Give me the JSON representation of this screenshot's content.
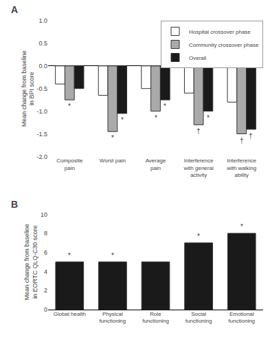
{
  "chart_data": [
    {
      "type": "bar",
      "title": "A",
      "categories": [
        "Composite\npain",
        "Worst pain",
        "Average\npain",
        "Interference\nwith general\nactivity",
        "Interference\nwith walking\nability"
      ],
      "series": [
        {
          "name": "Hospital crossover phase",
          "color": "#ffffff",
          "values": [
            -0.4,
            -0.65,
            -0.5,
            -0.6,
            -0.8
          ]
        },
        {
          "name": "Community crossover phase",
          "color": "#aaaaaa",
          "values": [
            -0.75,
            -1.45,
            -1.0,
            -1.3,
            -1.5
          ]
        },
        {
          "name": "Overall",
          "color": "#1a1a1a",
          "values": [
            -0.5,
            -1.05,
            -0.75,
            -1.0,
            -1.4
          ]
        }
      ],
      "ylabel": "Mean change from baseline\nin BPI score",
      "ylim": [
        -2.0,
        1.0
      ],
      "yticks": [
        {
          "value": -2.0,
          "label": "-2.0"
        },
        -1.5,
        {
          "value": -1.0,
          "label": "-1.0"
        },
        -0.5,
        {
          "value": 0.0,
          "label": "0.0"
        },
        0.5,
        {
          "value": 1.0,
          "label": "1.0"
        }
      ],
      "grid": false,
      "legend": "upper right",
      "annotations": [
        {
          "category": "Composite\npain",
          "series": "Community crossover phase",
          "text": "*"
        },
        {
          "category": "Worst pain",
          "series": "Community crossover phase",
          "text": "*"
        },
        {
          "category": "Average\npain",
          "series": "Community crossover phase",
          "text": "*"
        },
        {
          "category": "Interference\nwith general\nactivity",
          "series": "Community crossover phase",
          "text": "†"
        },
        {
          "category": "Interference\nwith walking\nability",
          "series": "Community crossover phase",
          "text": "†"
        },
        {
          "category": "Worst pain",
          "series": "Overall",
          "text": "*"
        },
        {
          "category": "Average\npain",
          "series": "Overall",
          "text": "*"
        },
        {
          "category": "Interference\nwith general\nactivity",
          "series": "Overall",
          "text": "*"
        },
        {
          "category": "Interference\nwith walking\nability",
          "series": "Overall",
          "text": "†"
        }
      ]
    },
    {
      "type": "bar",
      "title": "B",
      "categories": [
        "Global health",
        "Physical\nfunctioning",
        "Role\nfunctioning",
        "Social\nfunctioning",
        "Emotional\nfunctioning"
      ],
      "values": [
        5.0,
        5.0,
        5.0,
        7.0,
        8.0
      ],
      "color": "#1a1a1a",
      "ylabel": "Mean change from baseline\nin EORTC QLQ-C30 score",
      "ylim": [
        0,
        10
      ],
      "yticks": [
        0,
        2,
        4,
        6,
        8,
        10
      ],
      "grid": false,
      "annotations": [
        {
          "category": "Global health",
          "text": "*"
        },
        {
          "category": "Physical\nfunctioning",
          "text": "*"
        },
        {
          "category": "Social\nfunctioning",
          "text": "*"
        },
        {
          "category": "Emotional\nfunctioning",
          "text": "*"
        }
      ]
    }
  ]
}
